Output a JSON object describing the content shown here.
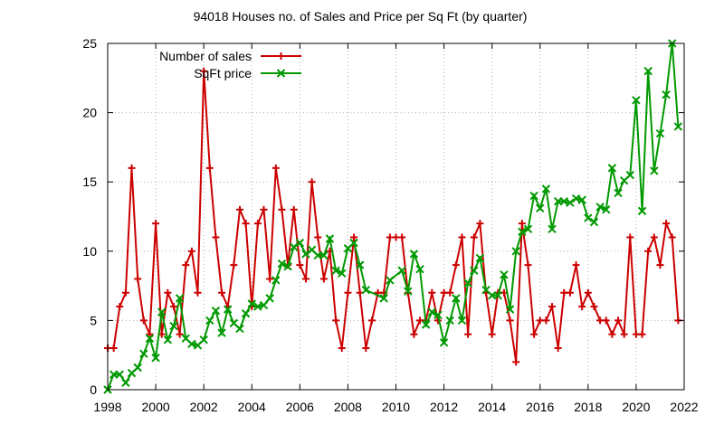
{
  "chart_data": {
    "type": "line",
    "title": "94018 Houses no. of Sales and Price per Sq Ft (by quarter)",
    "xlim": [
      1998,
      2022
    ],
    "ylim": [
      0,
      25
    ],
    "x_ticks": [
      1998,
      2000,
      2002,
      2004,
      2006,
      2008,
      2010,
      2012,
      2014,
      2016,
      2018,
      2020,
      2022
    ],
    "y_ticks": [
      0,
      5,
      10,
      15,
      20,
      25
    ],
    "grid": true,
    "legend_position": "top-left",
    "series": [
      {
        "name": "Number of sales",
        "color": "#cc0000",
        "marker": "plus",
        "points": [
          [
            1998.0,
            3
          ],
          [
            1998.25,
            3
          ],
          [
            1998.5,
            6
          ],
          [
            1998.75,
            7
          ],
          [
            1999.0,
            16
          ],
          [
            1999.25,
            8
          ],
          [
            1999.5,
            5
          ],
          [
            1999.75,
            4
          ],
          [
            2000.0,
            12
          ],
          [
            2000.25,
            4
          ],
          [
            2000.5,
            7
          ],
          [
            2000.75,
            6
          ],
          [
            2001.0,
            4
          ],
          [
            2001.25,
            9
          ],
          [
            2001.5,
            10
          ],
          [
            2001.75,
            7
          ],
          [
            2002.0,
            23
          ],
          [
            2002.25,
            16
          ],
          [
            2002.5,
            11
          ],
          [
            2002.75,
            7
          ],
          [
            2003.0,
            6
          ],
          [
            2003.25,
            9
          ],
          [
            2003.5,
            13
          ],
          [
            2003.75,
            12
          ],
          [
            2004.0,
            6
          ],
          [
            2004.25,
            12
          ],
          [
            2004.5,
            13
          ],
          [
            2004.75,
            8
          ],
          [
            2005.0,
            16
          ],
          [
            2005.25,
            13
          ],
          [
            2005.5,
            9
          ],
          [
            2005.75,
            13
          ],
          [
            2006.0,
            9
          ],
          [
            2006.25,
            8
          ],
          [
            2006.5,
            15
          ],
          [
            2006.75,
            11
          ],
          [
            2007.0,
            8
          ],
          [
            2007.25,
            10
          ],
          [
            2007.5,
            5
          ],
          [
            2007.75,
            3
          ],
          [
            2008.0,
            7
          ],
          [
            2008.25,
            11
          ],
          [
            2008.5,
            7
          ],
          [
            2008.75,
            3
          ],
          [
            2009.0,
            5
          ],
          [
            2009.25,
            7
          ],
          [
            2009.5,
            7
          ],
          [
            2009.75,
            11
          ],
          [
            2010.0,
            11
          ],
          [
            2010.25,
            11
          ],
          [
            2010.5,
            7
          ],
          [
            2010.75,
            4
          ],
          [
            2011.0,
            5
          ],
          [
            2011.25,
            5
          ],
          [
            2011.5,
            7
          ],
          [
            2011.75,
            5
          ],
          [
            2012.0,
            7
          ],
          [
            2012.25,
            7
          ],
          [
            2012.5,
            9
          ],
          [
            2012.75,
            11
          ],
          [
            2013.0,
            4
          ],
          [
            2013.25,
            11
          ],
          [
            2013.5,
            12
          ],
          [
            2013.75,
            7
          ],
          [
            2014.0,
            4
          ],
          [
            2014.25,
            7
          ],
          [
            2014.5,
            7
          ],
          [
            2014.75,
            5
          ],
          [
            2015.0,
            2
          ],
          [
            2015.25,
            12
          ],
          [
            2015.5,
            9
          ],
          [
            2015.75,
            4
          ],
          [
            2016.0,
            5
          ],
          [
            2016.25,
            5
          ],
          [
            2016.5,
            6
          ],
          [
            2016.75,
            3
          ],
          [
            2017.0,
            7
          ],
          [
            2017.25,
            7
          ],
          [
            2017.5,
            9
          ],
          [
            2017.75,
            6
          ],
          [
            2018.0,
            7
          ],
          [
            2018.25,
            6
          ],
          [
            2018.5,
            5
          ],
          [
            2018.75,
            5
          ],
          [
            2019.0,
            4
          ],
          [
            2019.25,
            5
          ],
          [
            2019.5,
            4
          ],
          [
            2019.75,
            11
          ],
          [
            2020.0,
            4
          ],
          [
            2020.25,
            4
          ],
          [
            2020.5,
            10
          ],
          [
            2020.75,
            11
          ],
          [
            2021.0,
            9
          ],
          [
            2021.25,
            12
          ],
          [
            2021.5,
            11
          ],
          [
            2021.75,
            5
          ]
        ]
      },
      {
        "name": "SqFt price",
        "color": "#009900",
        "marker": "cross",
        "points": [
          [
            1998.0,
            0
          ],
          [
            1998.25,
            1.1
          ],
          [
            1998.5,
            1.1
          ],
          [
            1998.75,
            0.5
          ],
          [
            1999.0,
            1.2
          ],
          [
            1999.25,
            1.6
          ],
          [
            1999.5,
            2.6
          ],
          [
            1999.75,
            3.7
          ],
          [
            2000.0,
            2.3
          ],
          [
            2000.25,
            5.6
          ],
          [
            2000.5,
            3.6
          ],
          [
            2000.75,
            4.6
          ],
          [
            2001.0,
            6.6
          ],
          [
            2001.25,
            3.7
          ],
          [
            2001.5,
            3.3
          ],
          [
            2001.75,
            3.2
          ],
          [
            2002.0,
            3.6
          ],
          [
            2002.25,
            5.0
          ],
          [
            2002.5,
            5.7
          ],
          [
            2002.75,
            4.1
          ],
          [
            2003.0,
            5.8
          ],
          [
            2003.25,
            4.8
          ],
          [
            2003.5,
            4.4
          ],
          [
            2003.75,
            5.5
          ],
          [
            2004.0,
            6.2
          ],
          [
            2004.25,
            6.0
          ],
          [
            2004.5,
            6.1
          ],
          [
            2004.75,
            6.6
          ],
          [
            2005.0,
            7.9
          ],
          [
            2005.25,
            9.1
          ],
          [
            2005.5,
            8.9
          ],
          [
            2005.75,
            10.3
          ],
          [
            2006.0,
            10.6
          ],
          [
            2006.25,
            9.8
          ],
          [
            2006.5,
            10.1
          ],
          [
            2006.75,
            9.7
          ],
          [
            2007.0,
            9.7
          ],
          [
            2007.25,
            10.9
          ],
          [
            2007.5,
            8.6
          ],
          [
            2007.75,
            8.4
          ],
          [
            2008.0,
            10.2
          ],
          [
            2008.25,
            10.6
          ],
          [
            2008.5,
            9.0
          ],
          [
            2008.75,
            7.2
          ],
          [
            2009.5,
            6.6
          ],
          [
            2009.75,
            7.9
          ],
          [
            2010.25,
            8.6
          ],
          [
            2010.5,
            7.1
          ],
          [
            2010.75,
            9.8
          ],
          [
            2011.0,
            8.7
          ],
          [
            2011.25,
            4.7
          ],
          [
            2011.5,
            5.6
          ],
          [
            2011.75,
            5.4
          ],
          [
            2012.0,
            3.4
          ],
          [
            2012.25,
            5.0
          ],
          [
            2012.5,
            6.6
          ],
          [
            2012.75,
            5.0
          ],
          [
            2013.0,
            7.7
          ],
          [
            2013.25,
            8.6
          ],
          [
            2013.5,
            9.5
          ],
          [
            2013.75,
            7.2
          ],
          [
            2014.0,
            6.8
          ],
          [
            2014.25,
            6.8
          ],
          [
            2014.5,
            8.3
          ],
          [
            2014.75,
            5.8
          ],
          [
            2015.0,
            10.0
          ],
          [
            2015.25,
            11.4
          ],
          [
            2015.5,
            11.6
          ],
          [
            2015.75,
            14.0
          ],
          [
            2016.0,
            13.1
          ],
          [
            2016.25,
            14.5
          ],
          [
            2016.5,
            11.6
          ],
          [
            2016.75,
            13.6
          ],
          [
            2017.0,
            13.6
          ],
          [
            2017.25,
            13.5
          ],
          [
            2017.5,
            13.8
          ],
          [
            2017.75,
            13.7
          ],
          [
            2018.0,
            12.4
          ],
          [
            2018.25,
            12.1
          ],
          [
            2018.5,
            13.2
          ],
          [
            2018.75,
            13.0
          ],
          [
            2019.0,
            16.0
          ],
          [
            2019.25,
            14.2
          ],
          [
            2019.5,
            15.1
          ],
          [
            2019.75,
            15.5
          ],
          [
            2020.0,
            20.9
          ],
          [
            2020.25,
            12.9
          ],
          [
            2020.5,
            23.0
          ],
          [
            2020.75,
            15.8
          ],
          [
            2021.0,
            18.5
          ],
          [
            2021.25,
            21.3
          ],
          [
            2021.5,
            25.0
          ],
          [
            2021.75,
            19.0
          ]
        ]
      }
    ]
  }
}
